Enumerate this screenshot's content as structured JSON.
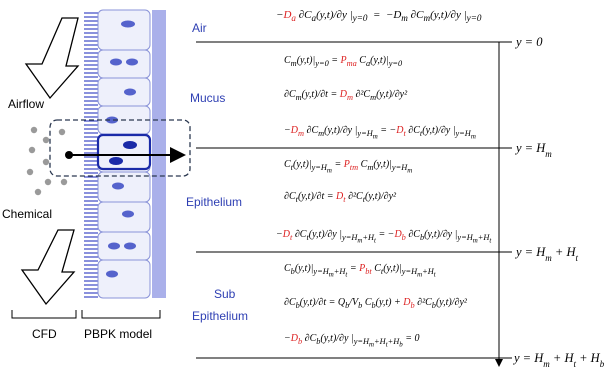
{
  "labels": {
    "airflow": "Airflow",
    "chemical": "Chemical",
    "cfd": "CFD",
    "pbpk": "PBPK model"
  },
  "layers": {
    "air": "Air",
    "mucus": "Mucus",
    "epithelium": "Epithelium",
    "sub_line1": "Sub",
    "sub_line2": "Epithelium"
  },
  "boundaries": [
    "y = 0",
    "y = H_m",
    "y = H_m + H_t",
    "y = H_m + H_t + H_b"
  ],
  "equations": {
    "air_flux": "−D_a ∂C_a(y,t)/∂y |_{y=0} = −D_m ∂C_m(y,t)/∂y |_{y=0}",
    "mucus_partition": "C_m(y,t)|_{y=0} = P_ma C_a(y,t)|_{y=0}",
    "mucus_diffusion": "∂C_m(y,t)/∂t = D_m ∂²C_m(y,t)/∂y²",
    "mucus_flux": "−D_m ∂C_m(y,t)/∂y |_{y=H_m} = −D_t ∂C_t(y,t)/∂y |_{y=H_m}",
    "epi_partition": "C_t(y,t)|_{y=H_m} = P_tm C_m(y,t)|_{y=H_m}",
    "epi_diffusion": "∂C_t(y,t)/∂t = D_t ∂²C_t(y,t)/∂y²",
    "epi_flux": "−D_t ∂C_t(y,t)/∂y |_{y=H_m+H_t} = −D_b ∂C_b(y,t)/∂y |_{y=H_m+H_t}",
    "sub_partition": "C_b(y,t)|_{y=H_m+H_t} = P_bt C_t(y,t)|_{y=H_m+H_t}",
    "sub_diffusion": "∂C_b(y,t)/∂t = Q_b/V_b C_b(y,t) + D_b ∂²C_b(y,t)/∂y²",
    "sub_flux": "−D_b ∂C_b(y,t)/∂y |_{y=H_m+H_t+H_b} = 0"
  },
  "colors": {
    "layer_text": "#2e3fb3",
    "coefficient": "#d22222",
    "cell_fill": "#eef0fb",
    "cell_border": "#8a93d8",
    "nucleus": "#5563cc",
    "membrane": "#aab0ea",
    "dot": "#9a9a9a"
  }
}
